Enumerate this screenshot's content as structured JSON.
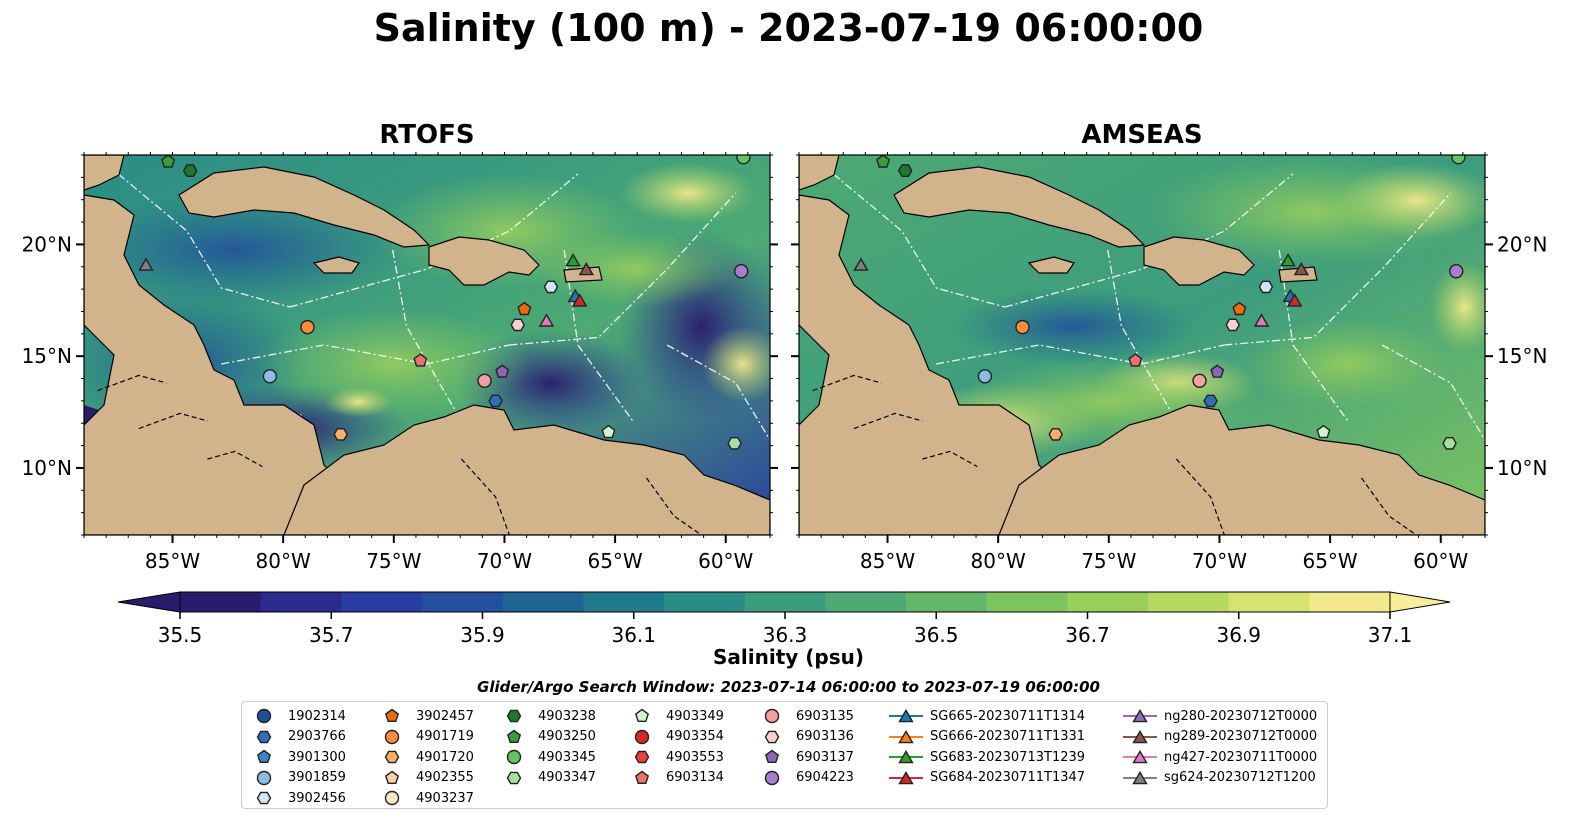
{
  "title": "Salinity (100 m) - 2023-07-19 06:00:00",
  "panels": [
    {
      "title": "RTOFS",
      "style": "rtofs"
    },
    {
      "title": "AMSEAS",
      "style": "amseas"
    }
  ],
  "map": {
    "lon_range": [
      -89,
      -58
    ],
    "lat_range": [
      7,
      24
    ],
    "x_ticks": [
      "85°W",
      "80°W",
      "75°W",
      "70°W",
      "65°W",
      "60°W"
    ],
    "x_tick_values": [
      -85,
      -80,
      -75,
      -70,
      -65,
      -60
    ],
    "y_ticks": [
      "20°N",
      "15°N",
      "10°N"
    ],
    "y_tick_values": [
      20,
      15,
      10
    ],
    "colors": {
      "land": "#d2b48c",
      "ocean": "#97b6e1"
    }
  },
  "colorbar": {
    "label": "Salinity (psu)",
    "ticks": [
      "35.5",
      "35.7",
      "35.9",
      "36.1",
      "36.3",
      "36.5",
      "36.7",
      "36.9",
      "37.1"
    ],
    "colors": [
      "#2a1b6b",
      "#2d2a8e",
      "#2a3da0",
      "#23509c",
      "#1d6592",
      "#1f7a8c",
      "#2b8c86",
      "#3c9c7e",
      "#4daa73",
      "#62b86a",
      "#7dc461",
      "#99cf5d",
      "#b7d961",
      "#d6e36e",
      "#f2e98a"
    ]
  },
  "search_window": "Glider/Argo Search Window: 2023-07-14 06:00:00 to 2023-07-19 06:00:00",
  "legend": {
    "columns": [
      [
        {
          "label": "1902314",
          "shape": "circle",
          "color": "#1f4e99"
        },
        {
          "label": "2903766",
          "shape": "hexagon",
          "color": "#2f6fb5"
        },
        {
          "label": "3901300",
          "shape": "pentagon",
          "color": "#3e86c6"
        },
        {
          "label": "3901859",
          "shape": "circle",
          "color": "#8dbde6"
        },
        {
          "label": "3902456",
          "shape": "hexagon",
          "color": "#cfe6f7"
        }
      ],
      [
        {
          "label": "3902457",
          "shape": "pentagon",
          "color": "#ee6a0a"
        },
        {
          "label": "4901719",
          "shape": "circle",
          "color": "#fd8d3c"
        },
        {
          "label": "4901720",
          "shape": "hexagon",
          "color": "#fdae6b"
        },
        {
          "label": "4902355",
          "shape": "pentagon",
          "color": "#fdd0a2"
        },
        {
          "label": "4903237",
          "shape": "circle",
          "color": "#fee6c8"
        }
      ],
      [
        {
          "label": "4903238",
          "shape": "hexagon",
          "color": "#1b7a2e"
        },
        {
          "label": "4903250",
          "shape": "pentagon",
          "color": "#3a9d3a"
        },
        {
          "label": "4903345",
          "shape": "circle",
          "color": "#62c462"
        },
        {
          "label": "4903347",
          "shape": "hexagon",
          "color": "#a8e0a0"
        }
      ],
      [
        {
          "label": "4903349",
          "shape": "pentagon",
          "color": "#d4f2cc"
        },
        {
          "label": "4903354",
          "shape": "circle",
          "color": "#d62728"
        },
        {
          "label": "4903553",
          "shape": "hexagon",
          "color": "#e8413e"
        },
        {
          "label": "6903134",
          "shape": "pentagon",
          "color": "#f07070"
        }
      ],
      [
        {
          "label": "6903135",
          "shape": "circle",
          "color": "#f4a0a0"
        },
        {
          "label": "6903136",
          "shape": "hexagon",
          "color": "#fbd0d0"
        },
        {
          "label": "6903137",
          "shape": "pentagon",
          "color": "#8e63b8"
        },
        {
          "label": "6904223",
          "shape": "circle",
          "color": "#a57fcf"
        }
      ],
      [
        {
          "label": "SG665-20230711T1314",
          "shape": "triangle",
          "color": "#1f77b4"
        },
        {
          "label": "SG666-20230711T1331",
          "shape": "triangle",
          "color": "#ff7f0e"
        },
        {
          "label": "SG683-20230713T1239",
          "shape": "triangle",
          "color": "#2ca02c"
        },
        {
          "label": "SG684-20230711T1347",
          "shape": "triangle",
          "color": "#d62728"
        }
      ],
      [
        {
          "label": "ng280-20230712T0000",
          "shape": "triangle",
          "color": "#9467bd"
        },
        {
          "label": "ng289-20230712T0000",
          "shape": "triangle",
          "color": "#8c564b"
        },
        {
          "label": "ng427-20230711T0000",
          "shape": "triangle",
          "color": "#e377c2"
        },
        {
          "label": "sg624-20230712T1200",
          "shape": "triangle",
          "color": "#7f7f7f"
        }
      ]
    ]
  },
  "markers": [
    {
      "lon": -85.2,
      "lat": 23.7,
      "shape": "pentagon",
      "color": "#3a9d3a"
    },
    {
      "lon": -84.2,
      "lat": 23.3,
      "shape": "hexagon",
      "color": "#1b7a2e"
    },
    {
      "lon": -59.2,
      "lat": 23.9,
      "shape": "circle",
      "color": "#62c462"
    },
    {
      "lon": -86.2,
      "lat": 19.1,
      "shape": "triangle",
      "color": "#7f7f7f"
    },
    {
      "lon": -59.3,
      "lat": 18.8,
      "shape": "circle",
      "color": "#a57fcf"
    },
    {
      "lon": -78.9,
      "lat": 16.3,
      "shape": "circle",
      "color": "#fd8d3c"
    },
    {
      "lon": -69.1,
      "lat": 17.1,
      "shape": "pentagon",
      "color": "#ee6a0a"
    },
    {
      "lon": -69.4,
      "lat": 16.4,
      "shape": "hexagon",
      "color": "#fbd0d0"
    },
    {
      "lon": -67.9,
      "lat": 18.1,
      "shape": "hexagon",
      "color": "#cfe6f7"
    },
    {
      "lon": -68.1,
      "lat": 16.6,
      "shape": "triangle",
      "color": "#e377c2"
    },
    {
      "lon": -66.9,
      "lat": 19.3,
      "shape": "triangle",
      "color": "#2ca02c"
    },
    {
      "lon": -66.3,
      "lat": 18.9,
      "shape": "triangle",
      "color": "#8c564b"
    },
    {
      "lon": -66.8,
      "lat": 17.7,
      "shape": "triangle",
      "color": "#1f77b4"
    },
    {
      "lon": -66.6,
      "lat": 17.5,
      "shape": "triangle",
      "color": "#d62728"
    },
    {
      "lon": -73.8,
      "lat": 14.8,
      "shape": "pentagon",
      "color": "#f07070"
    },
    {
      "lon": -80.6,
      "lat": 14.1,
      "shape": "circle",
      "color": "#8dbde6"
    },
    {
      "lon": -70.9,
      "lat": 13.9,
      "shape": "circle",
      "color": "#f4a0a0"
    },
    {
      "lon": -70.1,
      "lat": 14.3,
      "shape": "pentagon",
      "color": "#8e63b8"
    },
    {
      "lon": -70.4,
      "lat": 13.0,
      "shape": "hexagon",
      "color": "#2f6fb5"
    },
    {
      "lon": -77.4,
      "lat": 11.5,
      "shape": "hexagon",
      "color": "#fdae6b"
    },
    {
      "lon": -65.3,
      "lat": 11.6,
      "shape": "pentagon",
      "color": "#d4f2cc"
    },
    {
      "lon": -59.6,
      "lat": 11.1,
      "shape": "hexagon",
      "color": "#a8e0a0"
    }
  ]
}
